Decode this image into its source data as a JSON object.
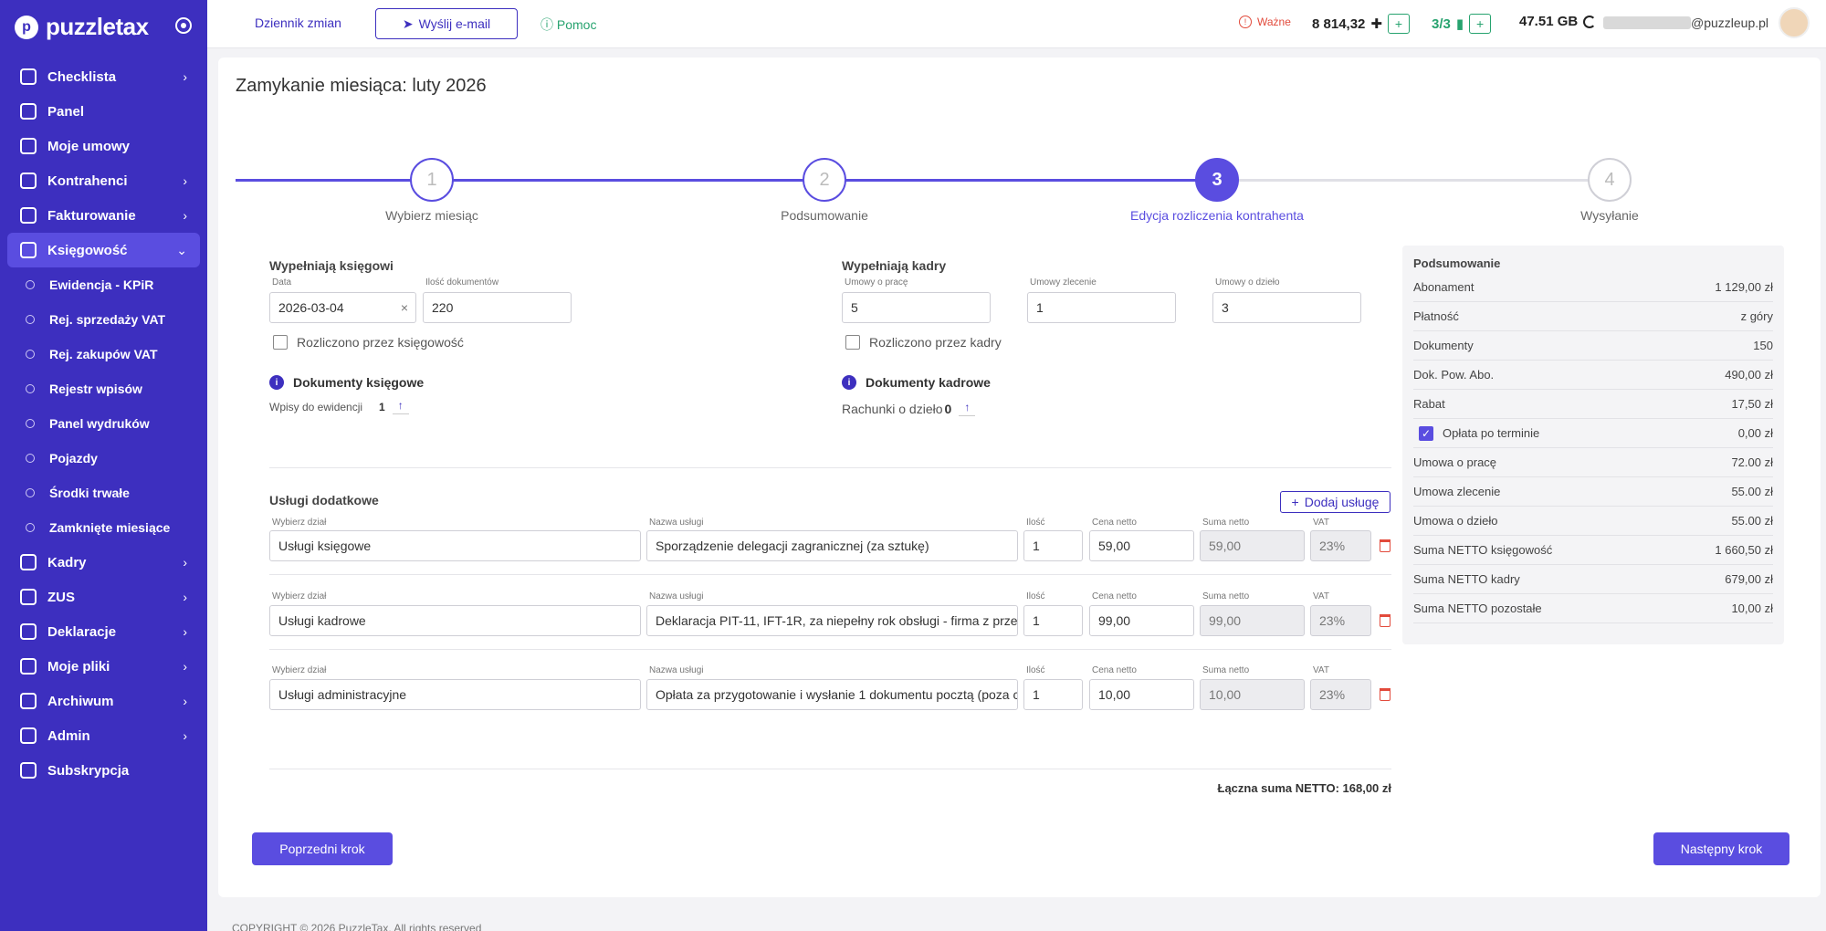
{
  "sidebar": {
    "logo_text": "puzzletax",
    "items": [
      {
        "label": "Checklista",
        "chevron": "›"
      },
      {
        "label": "Panel",
        "chevron": ""
      },
      {
        "label": "Moje umowy",
        "chevron": ""
      },
      {
        "label": "Kontrahenci",
        "chevron": "›"
      },
      {
        "label": "Fakturowanie",
        "chevron": "›"
      },
      {
        "label": "Księgowość",
        "chevron": "⌄"
      }
    ],
    "subitems": [
      "Ewidencja - KPiR",
      "Rej. sprzedaży VAT",
      "Rej. zakupów VAT",
      "Rejestr wpisów",
      "Panel wydruków",
      "Pojazdy",
      "Środki trwałe",
      "Zamknięte miesiące"
    ],
    "items2": [
      {
        "label": "Kadry",
        "chevron": "›"
      },
      {
        "label": "ZUS",
        "chevron": "›"
      },
      {
        "label": "Deklaracje",
        "chevron": "›"
      },
      {
        "label": "Moje pliki",
        "chevron": "›"
      },
      {
        "label": "Archiwum",
        "chevron": "›"
      },
      {
        "label": "Admin",
        "chevron": "›"
      },
      {
        "label": "Subskrypcja",
        "chevron": ""
      }
    ]
  },
  "topbar": {
    "changelog": "Dziennik zmian",
    "send_email": "Wyślij e-mail",
    "help": "Pomoc",
    "important": "Ważne",
    "points": "8 814,32",
    "docs": "3/3",
    "storage": "47.51 GB",
    "email_suffix": "@puzzleup.pl",
    "plus": "+"
  },
  "page": {
    "title": "Zamykanie miesiąca: luty 2026"
  },
  "stepper": {
    "steps": [
      {
        "num": "1",
        "label": "Wybierz miesiąc"
      },
      {
        "num": "2",
        "label": "Podsumowanie"
      },
      {
        "num": "3",
        "label": "Edycja rozliczenia kontrahenta"
      },
      {
        "num": "4",
        "label": "Wysyłanie"
      }
    ],
    "current": 3
  },
  "accounting": {
    "title": "Wypełniają księgowi",
    "date_label": "Data",
    "date_value": "2026-03-04",
    "clear": "×",
    "docs_label": "Ilość dokumentów",
    "docs_value": "220",
    "checkbox_label": "Rozliczono przez księgowość",
    "docs_section": "Dokumenty księgowe",
    "entries_label": "Wpisy do ewidencji",
    "entries_value": "1",
    "arrow": "↑"
  },
  "hr": {
    "title": "Wypełniają kadry",
    "employment_label": "Umowy o pracę",
    "employment_value": "5",
    "mandate_label": "Umowy zlecenie",
    "mandate_value": "1",
    "work_label": "Umowy o dzieło",
    "work_value": "3",
    "checkbox_label": "Rozliczono przez kadry",
    "docs_section": "Dokumenty kadrowe",
    "bills_label": "Rachunki o dzieło",
    "bills_value": "0"
  },
  "services": {
    "title": "Usługi dodatkowe",
    "add_label": "Dodaj usługę",
    "col_dept": "Wybierz dział",
    "col_name": "Nazwa usługi",
    "col_qty": "Ilość",
    "col_price": "Cena netto",
    "col_sum": "Suma netto",
    "col_vat": "VAT",
    "rows": [
      {
        "dept": "Usługi księgowe",
        "name": "Sporządzenie delegacji zagranicznej (za sztukę)",
        "qty": "1",
        "price": "59,00",
        "sum": "59,00",
        "vat": "23%"
      },
      {
        "dept": "Usługi kadrowe",
        "name": "Deklaracja PIT-11, IFT-1R, za niepełny rok obsługi - firma z prze",
        "qty": "1",
        "price": "99,00",
        "sum": "99,00",
        "vat": "23%"
      },
      {
        "dept": "Usługi administracyjne",
        "name": "Opłata za przygotowanie i wysłanie 1 dokumentu pocztą (poza c",
        "qty": "1",
        "price": "10,00",
        "sum": "10,00",
        "vat": "23%"
      }
    ],
    "total": "Łączna suma NETTO: 168,00 zł"
  },
  "summary": {
    "title": "Podsumowanie",
    "rows": [
      {
        "label": "Abonament",
        "value": "1 129,00 zł"
      },
      {
        "label": "Płatność",
        "value": "z góry"
      },
      {
        "label": "Dokumenty",
        "value": "150"
      },
      {
        "label": "Dok. Pow. Abo.",
        "value": "490,00 zł"
      },
      {
        "label": "Rabat",
        "value": "17,50 zł"
      },
      {
        "label": "Opłata po terminie",
        "value": "0,00 zł",
        "checkbox": true
      },
      {
        "label": "Umowa o pracę",
        "value": "72.00 zł"
      },
      {
        "label": "Umowa zlecenie",
        "value": "55.00 zł"
      },
      {
        "label": "Umowa o dzieło",
        "value": "55.00 zł"
      },
      {
        "label": "Suma NETTO księgowość",
        "value": "1 660,50 zł"
      },
      {
        "label": "Suma NETTO kadry",
        "value": "679,00 zł"
      },
      {
        "label": "Suma NETTO pozostałe",
        "value": "10,00 zł"
      }
    ]
  },
  "nav_buttons": {
    "prev": "Poprzedni krok",
    "next": "Następny krok"
  },
  "footer": {
    "copyright": "COPYRIGHT © 2026 PuzzleTax. All rights reserved"
  },
  "colors": {
    "brand": "#3d2fbf",
    "accent": "#5a4de0",
    "success": "#27a36f",
    "danger": "#e24a3b"
  }
}
